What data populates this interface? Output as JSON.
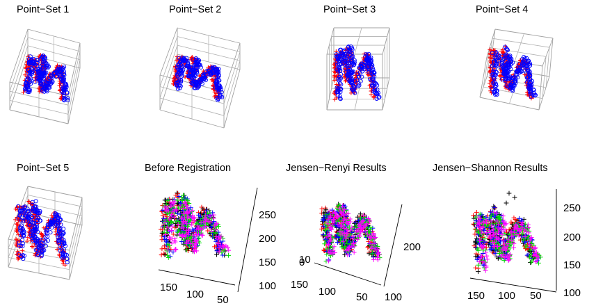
{
  "chart_data": [
    {
      "type": "scatter",
      "title": "Point−Set 1",
      "series_colors": [
        "#ff0000",
        "#0000ff"
      ],
      "markers": [
        "+",
        "o"
      ],
      "box": true
    },
    {
      "type": "scatter",
      "title": "Point−Set 2",
      "series_colors": [
        "#ff0000",
        "#0000ff"
      ],
      "markers": [
        "+",
        "o"
      ],
      "box": true
    },
    {
      "type": "scatter",
      "title": "Point−Set 3",
      "series_colors": [
        "#ff0000",
        "#0000ff"
      ],
      "markers": [
        "+",
        "o"
      ],
      "box": true
    },
    {
      "type": "scatter",
      "title": "Point−Set 4",
      "series_colors": [
        "#ff0000",
        "#0000ff"
      ],
      "markers": [
        "+",
        "o"
      ],
      "box": true
    },
    {
      "type": "scatter",
      "title": "Point−Set 5",
      "series_colors": [
        "#ff0000",
        "#0000ff"
      ],
      "markers": [
        "+",
        "o"
      ],
      "box": true
    },
    {
      "type": "scatter",
      "title": "Before Registration",
      "series_colors": [
        "#ff0000",
        "#000000",
        "#0000ff",
        "#00dd00",
        "#ff00ff"
      ],
      "markers": [
        "+"
      ],
      "x_ticks": [
        "150",
        "100",
        "50"
      ],
      "z_ticks": [
        "250",
        "200",
        "150",
        "100"
      ]
    },
    {
      "type": "scatter",
      "title": "Jensen−Renyi Results",
      "series_colors": [
        "#ff0000",
        "#000000",
        "#0000ff",
        "#00dd00",
        "#ff00ff"
      ],
      "markers": [
        "+"
      ],
      "x_ticks": [
        "150",
        "100",
        "50"
      ],
      "y_ticks": [
        "100"
      ],
      "z_ticks": [
        "200"
      ],
      "overlap_ticks": [
        "10",
        "0"
      ]
    },
    {
      "type": "scatter",
      "title": "Jensen−Shannon Results",
      "series_colors": [
        "#ff0000",
        "#000000",
        "#0000ff",
        "#00dd00",
        "#ff00ff"
      ],
      "markers": [
        "+"
      ],
      "x_ticks": [
        "150",
        "100",
        "50"
      ],
      "z_ticks": [
        "250",
        "200",
        "150",
        "100"
      ]
    }
  ]
}
